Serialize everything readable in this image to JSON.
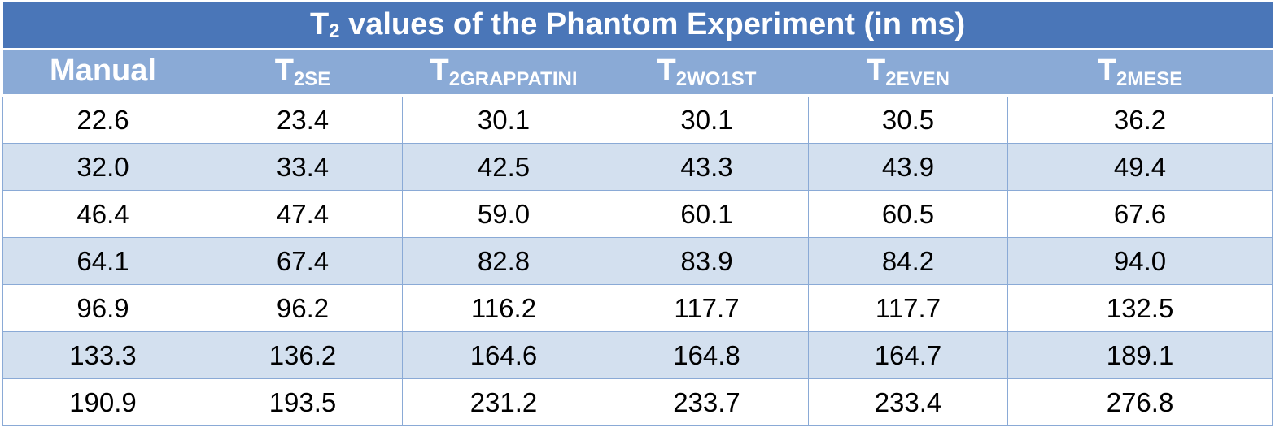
{
  "chart_data": {
    "type": "table",
    "title": {
      "prefix": "T",
      "subscript": "2",
      "suffix": " values of the Phantom Experiment (in ms)"
    },
    "columns": [
      {
        "main": "Manual",
        "sub": ""
      },
      {
        "main": "T",
        "sub": "2SE"
      },
      {
        "main": "T",
        "sub": "2GRAPPATINI"
      },
      {
        "main": "T",
        "sub": "2WO1ST"
      },
      {
        "main": "T",
        "sub": "2EVEN"
      },
      {
        "main": "T",
        "sub": "2MESE"
      }
    ],
    "rows": [
      [
        "22.6",
        "23.4",
        "30.1",
        "30.1",
        "30.5",
        "36.2"
      ],
      [
        "32.0",
        "33.4",
        "42.5",
        "43.3",
        "43.9",
        "49.4"
      ],
      [
        "46.4",
        "47.4",
        "59.0",
        "60.1",
        "60.5",
        "67.6"
      ],
      [
        "64.1",
        "67.4",
        "82.8",
        "83.9",
        "84.2",
        "94.0"
      ],
      [
        "96.9",
        "96.2",
        "116.2",
        "117.7",
        "117.7",
        "132.5"
      ],
      [
        "133.3",
        "136.2",
        "164.6",
        "164.8",
        "164.7",
        "189.1"
      ],
      [
        "190.9",
        "193.5",
        "231.2",
        "233.7",
        "233.4",
        "276.8"
      ]
    ]
  },
  "colors": {
    "title_bg": "#4a76b8",
    "header_bg": "#8aaad6",
    "band_bg": "#d3e0ef",
    "text_header": "#ffffff"
  }
}
